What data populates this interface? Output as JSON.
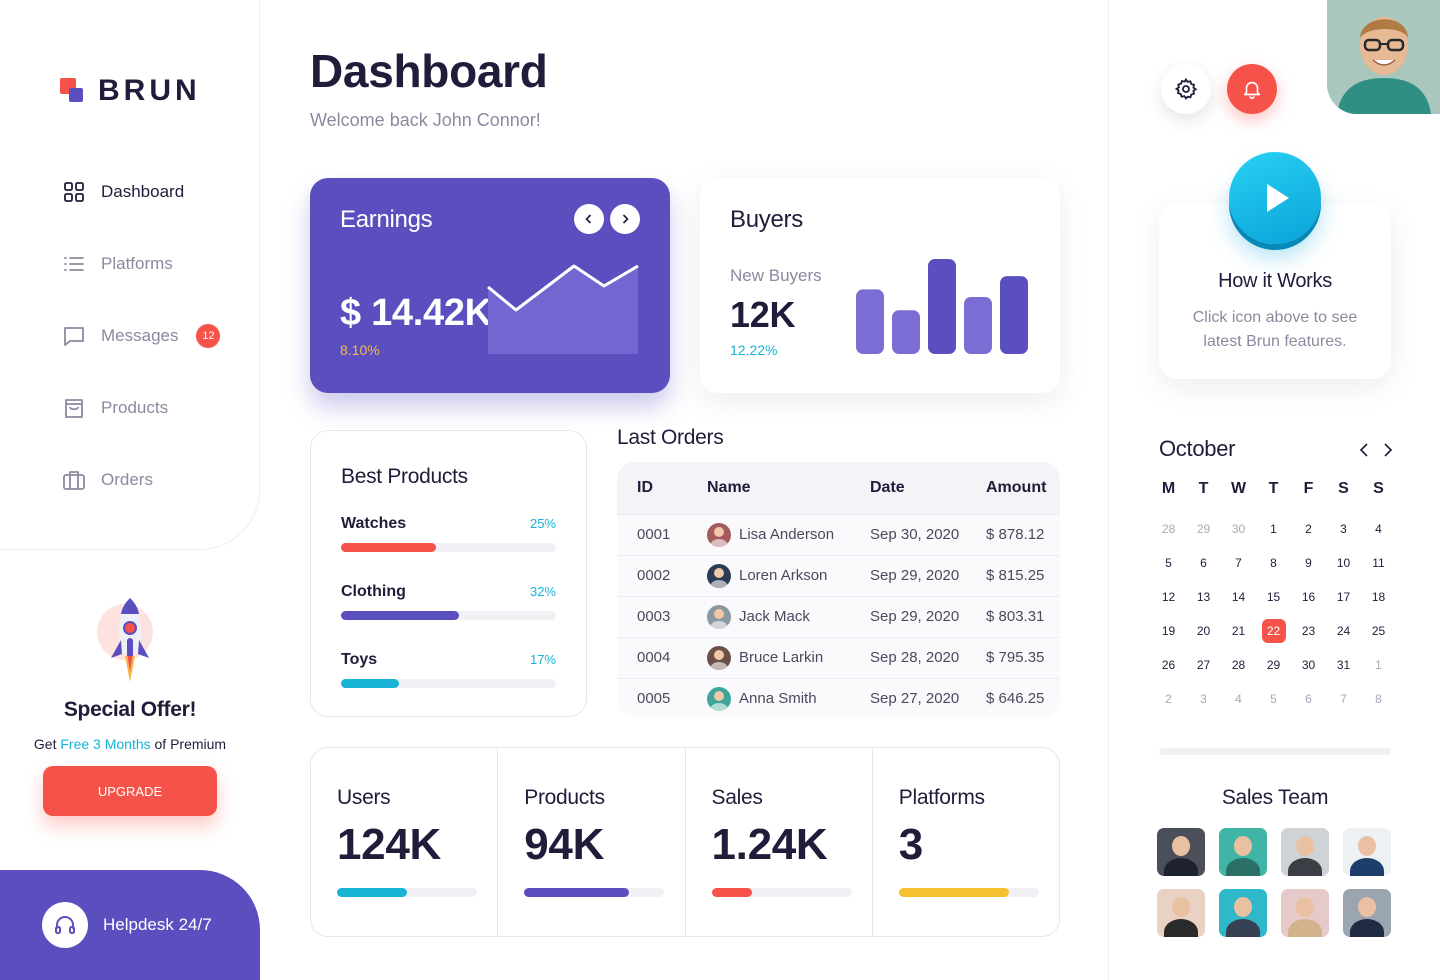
{
  "brand": {
    "name": "BRUN"
  },
  "nav": [
    {
      "label": "Dashboard",
      "icon": "grid-icon",
      "active": true
    },
    {
      "label": "Platforms",
      "icon": "list-icon"
    },
    {
      "label": "Messages",
      "icon": "message-icon",
      "badge": "12"
    },
    {
      "label": "Products",
      "icon": "bag-icon"
    },
    {
      "label": "Orders",
      "icon": "briefcase-icon"
    }
  ],
  "offer": {
    "title": "Special Offer!",
    "text_before": "Get ",
    "text_highlight": "Free 3 Months",
    "text_after": " of Premium",
    "button": "UPGRADE"
  },
  "helpdesk": {
    "label": "Helpdesk 24/7"
  },
  "header": {
    "title": "Dashboard",
    "welcome": "Welcome back John Connor!"
  },
  "earnings": {
    "title": "Earnings",
    "value": "$ 14.42K",
    "change": "8.10%"
  },
  "buyers": {
    "title": "Buyers",
    "subtitle": "New Buyers",
    "value": "12K",
    "change": "12.22%",
    "bars": [
      0.68,
      0.46,
      1.0,
      0.6,
      0.82
    ]
  },
  "best_products": {
    "title": "Best Products",
    "items": [
      {
        "name": "Watches",
        "percent": "25%",
        "fraction": 0.44,
        "color": "#f5524a"
      },
      {
        "name": "Clothing",
        "percent": "32%",
        "fraction": 0.55,
        "color": "#5b4fbf"
      },
      {
        "name": "Toys",
        "percent": "17%",
        "fraction": 0.27,
        "color": "#19b3d6"
      }
    ]
  },
  "orders": {
    "title": "Last Orders",
    "columns": [
      "ID",
      "Name",
      "Date",
      "Amount"
    ],
    "rows": [
      {
        "id": "0001",
        "name": "Lisa Anderson",
        "date": "Sep 30, 2020",
        "amount": "$ 878.12",
        "avatar": "#a55b5b"
      },
      {
        "id": "0002",
        "name": "Loren Arkson",
        "date": "Sep 29, 2020",
        "amount": "$ 815.25",
        "avatar": "#2d3b55"
      },
      {
        "id": "0003",
        "name": "Jack Mack",
        "date": "Sep 29, 2020",
        "amount": "$ 803.31",
        "avatar": "#8a9aa0"
      },
      {
        "id": "0004",
        "name": "Bruce Larkin",
        "date": "Sep 28, 2020",
        "amount": "$ 795.35",
        "avatar": "#6b5047"
      },
      {
        "id": "0005",
        "name": "Anna Smith",
        "date": "Sep 27, 2020",
        "amount": "$ 646.25",
        "avatar": "#3fa59a"
      }
    ]
  },
  "stats": [
    {
      "label": "Users",
      "value": "124K",
      "fraction": 0.5,
      "color": "#19b3d6"
    },
    {
      "label": "Products",
      "value": "94K",
      "fraction": 0.75,
      "color": "#5b4fbf"
    },
    {
      "label": "Sales",
      "value": "1.24K",
      "fraction": 0.29,
      "color": "#f5524a"
    },
    {
      "label": "Platforms",
      "value": "3",
      "fraction": 0.79,
      "color": "#f6c131"
    }
  ],
  "how_it_works": {
    "title": "How it Works",
    "text": "Click icon above to see latest Brun features."
  },
  "calendar": {
    "month": "October",
    "weekdays": [
      "M",
      "T",
      "W",
      "T",
      "F",
      "S",
      "S"
    ],
    "days": [
      {
        "d": "28",
        "m": true
      },
      {
        "d": "29",
        "m": true
      },
      {
        "d": "30",
        "m": true
      },
      {
        "d": "1"
      },
      {
        "d": "2"
      },
      {
        "d": "3"
      },
      {
        "d": "4"
      },
      {
        "d": "5"
      },
      {
        "d": "6"
      },
      {
        "d": "7"
      },
      {
        "d": "8"
      },
      {
        "d": "9"
      },
      {
        "d": "10"
      },
      {
        "d": "11"
      },
      {
        "d": "12"
      },
      {
        "d": "13"
      },
      {
        "d": "14"
      },
      {
        "d": "15"
      },
      {
        "d": "16"
      },
      {
        "d": "17"
      },
      {
        "d": "18"
      },
      {
        "d": "19"
      },
      {
        "d": "20"
      },
      {
        "d": "21"
      },
      {
        "d": "22",
        "today": true
      },
      {
        "d": "23"
      },
      {
        "d": "24"
      },
      {
        "d": "25"
      },
      {
        "d": "26"
      },
      {
        "d": "27"
      },
      {
        "d": "28"
      },
      {
        "d": "29"
      },
      {
        "d": "30"
      },
      {
        "d": "31"
      },
      {
        "d": "1",
        "m": true
      },
      {
        "d": "2",
        "m": true
      },
      {
        "d": "3",
        "m": true
      },
      {
        "d": "4",
        "m": true
      },
      {
        "d": "5",
        "m": true
      },
      {
        "d": "6",
        "m": true
      },
      {
        "d": "7",
        "m": true
      },
      {
        "d": "8",
        "m": true
      }
    ]
  },
  "sales_team": {
    "title": "Sales Team",
    "members": [
      {
        "bg": "#4a4f5a",
        "shirt": "#1e2230"
      },
      {
        "bg": "#3fb5a5",
        "shirt": "#2b6f66"
      },
      {
        "bg": "#cfd3d6",
        "shirt": "#3b3f45"
      },
      {
        "bg": "#eef1f3",
        "shirt": "#1c3e6b"
      },
      {
        "bg": "#e9d2c4",
        "shirt": "#2a2a2a"
      },
      {
        "bg": "#2fb8c9",
        "shirt": "#374151"
      },
      {
        "bg": "#e6c9c9",
        "shirt": "#d2b48c"
      },
      {
        "bg": "#9aa5b0",
        "shirt": "#1f2a44"
      }
    ]
  }
}
